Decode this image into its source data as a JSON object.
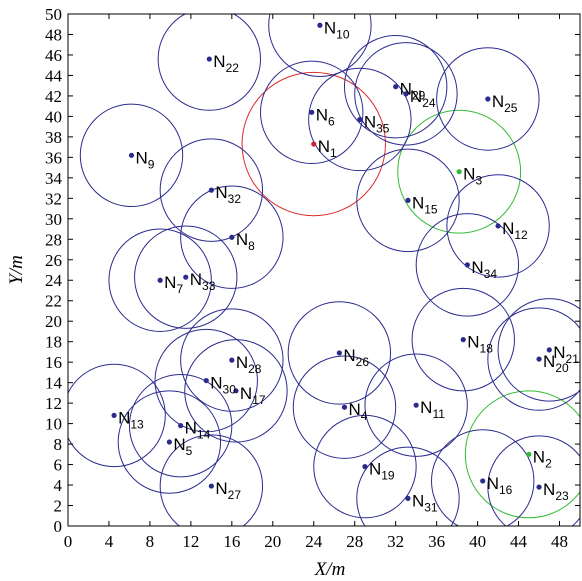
{
  "chart_data": {
    "type": "scatter",
    "xlabel": "X/m",
    "ylabel": "Y/m",
    "xlim": [
      0,
      50
    ],
    "ylim": [
      0,
      50
    ],
    "xticks": [
      0,
      4,
      8,
      12,
      16,
      20,
      24,
      28,
      32,
      36,
      40,
      44,
      48
    ],
    "yticks": [
      0,
      2,
      4,
      6,
      8,
      10,
      12,
      14,
      16,
      18,
      20,
      22,
      24,
      26,
      28,
      30,
      32,
      34,
      36,
      38,
      40,
      42,
      44,
      46,
      48,
      50
    ],
    "grid": false,
    "nodes": [
      {
        "label": "N",
        "sub": "1",
        "x": 24.0,
        "y": 37.3,
        "r": 7.0,
        "point_color": "#cc2233",
        "circle_color": "#dd2a2a"
      },
      {
        "label": "N",
        "sub": "2",
        "x": 45.0,
        "y": 7.0,
        "r": 6.2,
        "point_color": "#33bb33",
        "circle_color": "#33bb33"
      },
      {
        "label": "N",
        "sub": "3",
        "x": 38.2,
        "y": 34.6,
        "r": 6.0,
        "point_color": "#33bb33",
        "circle_color": "#33bb33"
      },
      {
        "label": "N",
        "sub": "4",
        "x": 27.0,
        "y": 11.6,
        "r": 5.0
      },
      {
        "label": "N",
        "sub": "5",
        "x": 9.9,
        "y": 8.2,
        "r": 5.0
      },
      {
        "label": "N",
        "sub": "6",
        "x": 23.8,
        "y": 40.4,
        "r": 5.0
      },
      {
        "label": "N",
        "sub": "7",
        "x": 9.0,
        "y": 24.0,
        "r": 5.0
      },
      {
        "label": "N",
        "sub": "8",
        "x": 16.0,
        "y": 28.2,
        "r": 5.0
      },
      {
        "label": "N",
        "sub": "9",
        "x": 6.2,
        "y": 36.2,
        "r": 5.0
      },
      {
        "label": "N",
        "sub": "10",
        "x": 24.6,
        "y": 48.9,
        "r": 5.0
      },
      {
        "label": "N",
        "sub": "11",
        "x": 34.0,
        "y": 11.8,
        "r": 5.0
      },
      {
        "label": "N",
        "sub": "12",
        "x": 42.0,
        "y": 29.3,
        "r": 5.0
      },
      {
        "label": "N",
        "sub": "13",
        "x": 4.5,
        "y": 10.8,
        "r": 5.0
      },
      {
        "label": "N",
        "sub": "14",
        "x": 11.0,
        "y": 9.8,
        "r": 5.0
      },
      {
        "label": "N",
        "sub": "15",
        "x": 33.2,
        "y": 31.8,
        "r": 5.0
      },
      {
        "label": "N",
        "sub": "16",
        "x": 40.5,
        "y": 4.4,
        "r": 5.0
      },
      {
        "label": "N",
        "sub": "17",
        "x": 16.4,
        "y": 13.2,
        "r": 5.0
      },
      {
        "label": "N",
        "sub": "18",
        "x": 38.6,
        "y": 18.2,
        "r": 5.0
      },
      {
        "label": "N",
        "sub": "19",
        "x": 29.0,
        "y": 5.8,
        "r": 5.0
      },
      {
        "label": "N",
        "sub": "20",
        "x": 46.0,
        "y": 16.3,
        "r": 5.0
      },
      {
        "label": "N",
        "sub": "21",
        "x": 47.0,
        "y": 17.2,
        "r": 5.0
      },
      {
        "label": "N",
        "sub": "22",
        "x": 13.8,
        "y": 45.6,
        "r": 5.0
      },
      {
        "label": "N",
        "sub": "23",
        "x": 46.0,
        "y": 3.8,
        "r": 5.0
      },
      {
        "label": "N",
        "sub": "24",
        "x": 33.0,
        "y": 42.2,
        "r": 5.0
      },
      {
        "label": "N",
        "sub": "25",
        "x": 41.0,
        "y": 41.7,
        "r": 5.0
      },
      {
        "label": "N",
        "sub": "26",
        "x": 26.5,
        "y": 16.9,
        "r": 5.0
      },
      {
        "label": "N",
        "sub": "27",
        "x": 14.0,
        "y": 3.9,
        "r": 5.0
      },
      {
        "label": "N",
        "sub": "28",
        "x": 16.0,
        "y": 16.2,
        "r": 5.0
      },
      {
        "label": "N",
        "sub": "29",
        "x": 32.0,
        "y": 42.9,
        "r": 5.0
      },
      {
        "label": "N",
        "sub": "30",
        "x": 13.5,
        "y": 14.2,
        "r": 5.0
      },
      {
        "label": "N",
        "sub": "31",
        "x": 33.2,
        "y": 2.7,
        "r": 5.0
      },
      {
        "label": "N",
        "sub": "32",
        "x": 14.0,
        "y": 32.8,
        "r": 5.0
      },
      {
        "label": "N",
        "sub": "33",
        "x": 11.5,
        "y": 24.3,
        "r": 5.0
      },
      {
        "label": "N",
        "sub": "34",
        "x": 39.0,
        "y": 25.5,
        "r": 5.0
      },
      {
        "label": "N",
        "sub": "35",
        "x": 28.5,
        "y": 39.7,
        "r": 5.0
      }
    ],
    "default_color": "#2b2b8f"
  }
}
